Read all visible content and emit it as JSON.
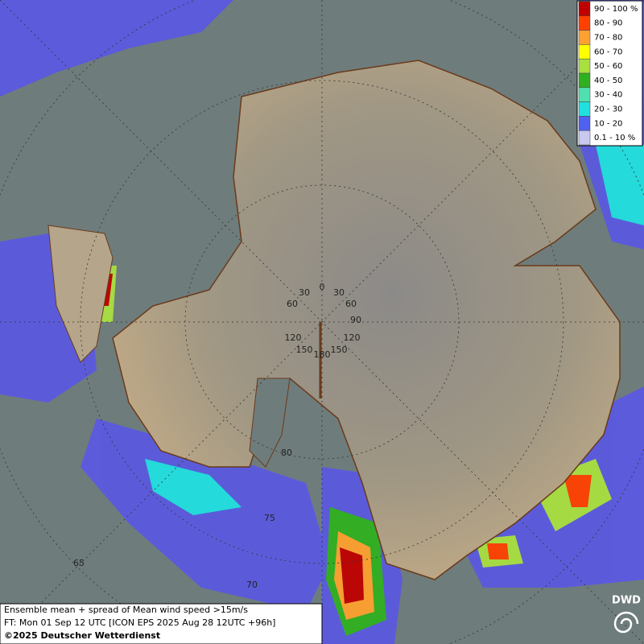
{
  "legend": {
    "items": [
      {
        "label": "90 - 100 %",
        "color": "#c00000"
      },
      {
        "label": "80 - 90",
        "color": "#ff4000"
      },
      {
        "label": "70 - 80",
        "color": "#ffa030"
      },
      {
        "label": "60 - 70",
        "color": "#ffff00"
      },
      {
        "label": "50 - 60",
        "color": "#a8e040"
      },
      {
        "label": "40 - 50",
        "color": "#30b020"
      },
      {
        "label": "30 - 40",
        "color": "#50e0b0"
      },
      {
        "label": "20 - 30",
        "color": "#20e0e0"
      },
      {
        "label": "10 - 20",
        "color": "#5060f0"
      },
      {
        "label": "0.1 - 10 %",
        "color": "#c8c8f0"
      }
    ]
  },
  "map": {
    "longitude_labels": [
      "0",
      "30",
      "30",
      "60",
      "60",
      "90",
      "120",
      "120",
      "150",
      "150",
      "180"
    ],
    "latitude_labels": [
      "80",
      "75",
      "70",
      "65"
    ]
  },
  "footer": {
    "lines": [
      "Ensemble mean + spread of Mean wind speed >15m/s",
      "FT: Mon 01 Sep 12 UTC [ICON EPS 2025 Aug 28 12UTC +96h]",
      "©2025 Deutscher Wetterdienst"
    ]
  },
  "logo": {
    "text": "DWD"
  }
}
